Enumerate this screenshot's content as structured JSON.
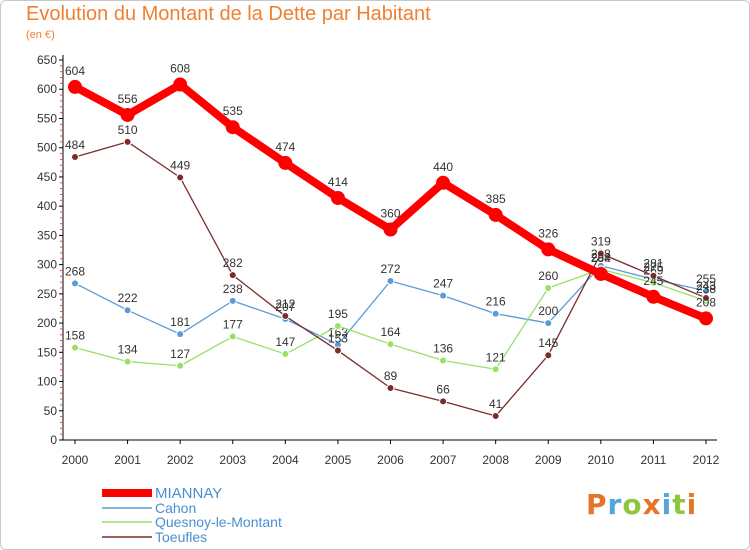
{
  "header": {
    "title": "Evolution du Montant de la Dette par Habitant",
    "subtitle": "(en €)"
  },
  "logo": {
    "text": "Proxiti"
  },
  "chart_data": {
    "type": "line",
    "title": "Evolution du Montant de la Dette par Habitant",
    "subtitle": "(en €)",
    "xlabel": "",
    "ylabel": "",
    "x": [
      "2000",
      "2001",
      "2002",
      "2003",
      "2004",
      "2005",
      "2006",
      "2007",
      "2008",
      "2009",
      "2010",
      "2011",
      "2012"
    ],
    "ylim": [
      0,
      650
    ],
    "yticks": [
      0,
      50,
      100,
      150,
      200,
      250,
      300,
      350,
      400,
      450,
      500,
      550,
      600,
      650
    ],
    "grid": false,
    "legend_position": "bottom-left",
    "series": [
      {
        "name": "MIANNAY",
        "color": "#ff0000",
        "emphasis": true,
        "values": [
          604,
          556,
          608,
          535,
          474,
          414,
          360,
          440,
          385,
          326,
          284,
          245,
          208
        ],
        "labels": [
          "604",
          "556",
          "608",
          "535",
          "474",
          "414",
          "360",
          "440",
          "385",
          "326",
          "284",
          "245",
          "208"
        ]
      },
      {
        "name": "Cahon",
        "color": "#5b9bd5",
        "emphasis": false,
        "values": [
          268,
          222,
          181,
          238,
          207,
          163,
          272,
          247,
          216,
          200,
          298,
          275,
          255
        ],
        "labels": [
          "268",
          "222",
          "181",
          "238",
          "207",
          "163",
          "272",
          "247",
          "216",
          "200",
          "298",
          "275",
          "255"
        ]
      },
      {
        "name": "Quesnoy-le-Montant",
        "color": "#99e066",
        "emphasis": false,
        "values": [
          158,
          134,
          127,
          177,
          147,
          195,
          164,
          136,
          121,
          260,
          292,
          269,
          238
        ],
        "labels": [
          "158",
          "134",
          "127",
          "177",
          "147",
          "195",
          "164",
          "136",
          "121",
          "260",
          "292",
          "269",
          "238"
        ]
      },
      {
        "name": "Toeufles",
        "color": "#7b2c2c",
        "emphasis": false,
        "values": [
          484,
          510,
          449,
          282,
          212,
          153,
          89,
          66,
          41,
          145,
          319,
          281,
          243
        ],
        "labels": [
          "484",
          "510",
          "449",
          "282",
          "212",
          "153",
          "89",
          "66",
          "41",
          "145",
          "319",
          "281",
          "243"
        ]
      }
    ]
  }
}
